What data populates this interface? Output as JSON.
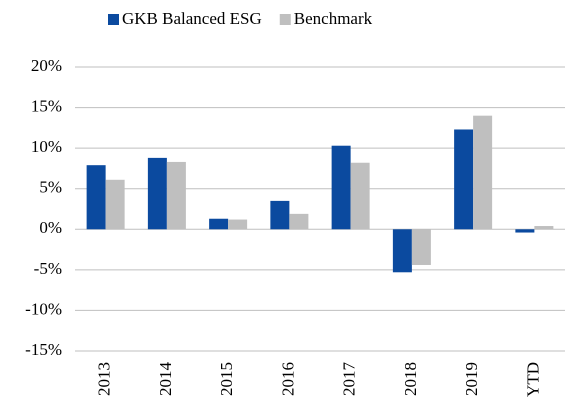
{
  "chart_data": {
    "type": "bar",
    "categories": [
      "2013",
      "2014",
      "2015",
      "2016",
      "2017",
      "2018",
      "2019",
      "YTD"
    ],
    "series": [
      {
        "name": "GKB Balanced ESG",
        "color": "#0b4a9f",
        "values": [
          7.9,
          8.8,
          1.3,
          3.5,
          10.3,
          -5.3,
          12.3,
          -0.4
        ]
      },
      {
        "name": "Benchmark",
        "color": "#bfbfbf",
        "values": [
          6.1,
          8.3,
          1.2,
          1.9,
          8.2,
          -4.4,
          14.0,
          0.4
        ]
      }
    ],
    "ylim": [
      -15,
      20
    ],
    "yticks": [
      {
        "value": -15,
        "label": "-15%"
      },
      {
        "value": -10,
        "label": "-10%"
      },
      {
        "value": -5,
        "label": "-5%"
      },
      {
        "value": 0,
        "label": "0%"
      },
      {
        "value": 5,
        "label": "5%"
      },
      {
        "value": 10,
        "label": "10%"
      },
      {
        "value": 15,
        "label": "15%"
      },
      {
        "value": 20,
        "label": "20%"
      }
    ],
    "grid": true,
    "legend": "top"
  }
}
